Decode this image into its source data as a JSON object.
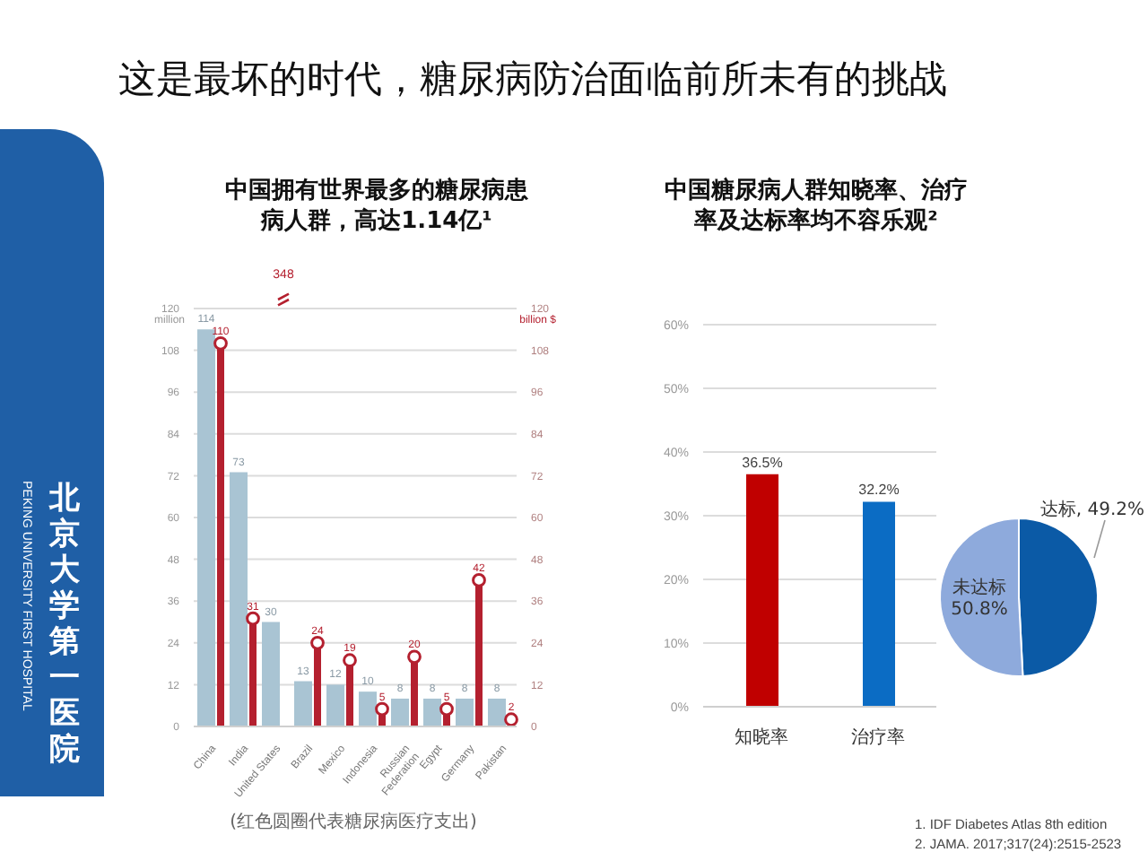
{
  "chart_data": [
    {
      "type": "bar",
      "title": "中国拥有世界最多的糖尿病患病人群，高达1.14亿¹",
      "categories": [
        "China",
        "India",
        "United States",
        "Brazil",
        "Mexico",
        "Indonesia",
        "Russian Federation",
        "Egypt",
        "Germany",
        "Pakistan"
      ],
      "series": [
        {
          "color": "#a9c4d3",
          "values": [
            114,
            73,
            30,
            13,
            12,
            10,
            8,
            8,
            8,
            8
          ]
        },
        {
          "type": "lollipop",
          "axis": "y2",
          "color": "#b4202f",
          "values": [
            110,
            31,
            null,
            24,
            19,
            5,
            20,
            5,
            42,
            2
          ]
        }
      ],
      "ylabel": "million",
      "y2label": "billion $",
      "ylim": [
        0,
        120
      ],
      "yticks": [
        0,
        12,
        24,
        36,
        48,
        60,
        72,
        84,
        96,
        108,
        120
      ],
      "y2lim": [
        0,
        120
      ],
      "y2ticks": [
        0,
        12,
        24,
        36,
        48,
        60,
        72,
        84,
        96,
        108,
        120
      ],
      "grid": "y",
      "data_labels": true,
      "annotations": [
        "(红色圆圈代表糖尿病医疗支出)",
        "348"
      ]
    },
    {
      "type": "bar",
      "title": "中国糖尿病人群知晓率、治疗率及达标率均不容乐观²",
      "categories": [
        "知晓率",
        "治疗率"
      ],
      "values": [
        36.5,
        32.2
      ],
      "colors": [
        "#c00000",
        "#0b6cc4"
      ],
      "value_labels": [
        "36.5%",
        "32.2%"
      ],
      "ylim": [
        0,
        60
      ],
      "yticks": [
        {
          "value": 0,
          "label": "0%"
        },
        {
          "value": 10,
          "label": "10%"
        },
        {
          "value": 20,
          "label": "20%"
        },
        {
          "value": 30,
          "label": "30%"
        },
        {
          "value": 40,
          "label": "40%"
        },
        {
          "value": 50,
          "label": "50%"
        },
        {
          "value": 60,
          "label": "60%"
        }
      ],
      "grid": "y"
    },
    {
      "type": "pie",
      "categories": [
        "达标",
        "未达标"
      ],
      "values": [
        49.2,
        50.8
      ],
      "colors": [
        "#0b5aa6",
        "#8eaadc"
      ],
      "value_labels": [
        "49.2%",
        "50.8%"
      ]
    },
    {
      "type": "other",
      "title": "这是最坏的时代，糖尿病防治面临前所未有的挑战",
      "annotations": [
        "1. IDF Diabetes Atlas 8th edition",
        "2. JAMA. 2017;317(24):2515-2523"
      ]
    },
    {
      "type": "other",
      "annotations": [
        "北京大学第一医院",
        "PEKING UNIVERSITY FIRST HOSPITAL"
      ]
    }
  ]
}
